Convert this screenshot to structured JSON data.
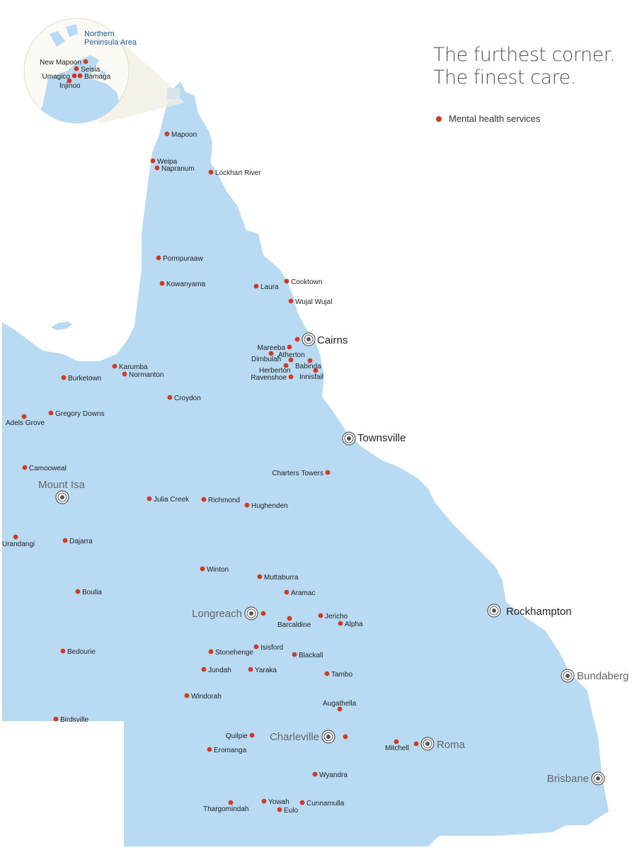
{
  "headline": {
    "line1": "The furthest corner.",
    "line2": "The finest care."
  },
  "legend": {
    "label": "Mental health services",
    "marker_color": "#d13a22"
  },
  "colors": {
    "land": "#b8daf2",
    "marker": "#d13a22",
    "inset_bg": "#fbf9f3",
    "major_city_text": "#222222",
    "minor_city_text": "#666666"
  },
  "inset": {
    "title_line1": "Northern",
    "title_line2": "Peninsula Area",
    "towns": [
      "New Mapoon",
      "Seisia",
      "Bamaga",
      "Umagico",
      "Injinoo"
    ]
  },
  "towns": [
    "Mapoon",
    "Weipa",
    "Napranum",
    "Lockhart River",
    "Pormpuraaw",
    "Kowanyama",
    "Laura",
    "Cooktown",
    "Wujal Wujal",
    "Mareeba",
    "Dimbulah",
    "Atherton",
    "Babinda",
    "Herberton",
    "Ravenshoe",
    "Innisfail",
    "Karumba",
    "Normanton",
    "Burketown",
    "Croydon",
    "Gregory Downs",
    "Adels Grove",
    "Charters Towers",
    "Camooweal",
    "Julia Creek",
    "Richmond",
    "Hughenden",
    "Urandangi",
    "Dajarra",
    "Winton",
    "Muttaburra",
    "Aramac",
    "Boulia",
    "Barcaldine",
    "Jericho",
    "Alpha",
    "Isisford",
    "Stonehenge",
    "Blackall",
    "Bedourie",
    "Jundah",
    "Yaraka",
    "Tambo",
    "Windorah",
    "Augathella",
    "Birdsville",
    "Quilpie",
    "Mitchell",
    "Eromanga",
    "Wyandra",
    "Thargomindah",
    "Yowah",
    "Cunnamulla",
    "Eulo"
  ],
  "cities": [
    "Cairns",
    "Townsville",
    "Mount Isa",
    "Longreach",
    "Rockhampton",
    "Bundaberg",
    "Charleville",
    "Roma",
    "Brisbane"
  ]
}
